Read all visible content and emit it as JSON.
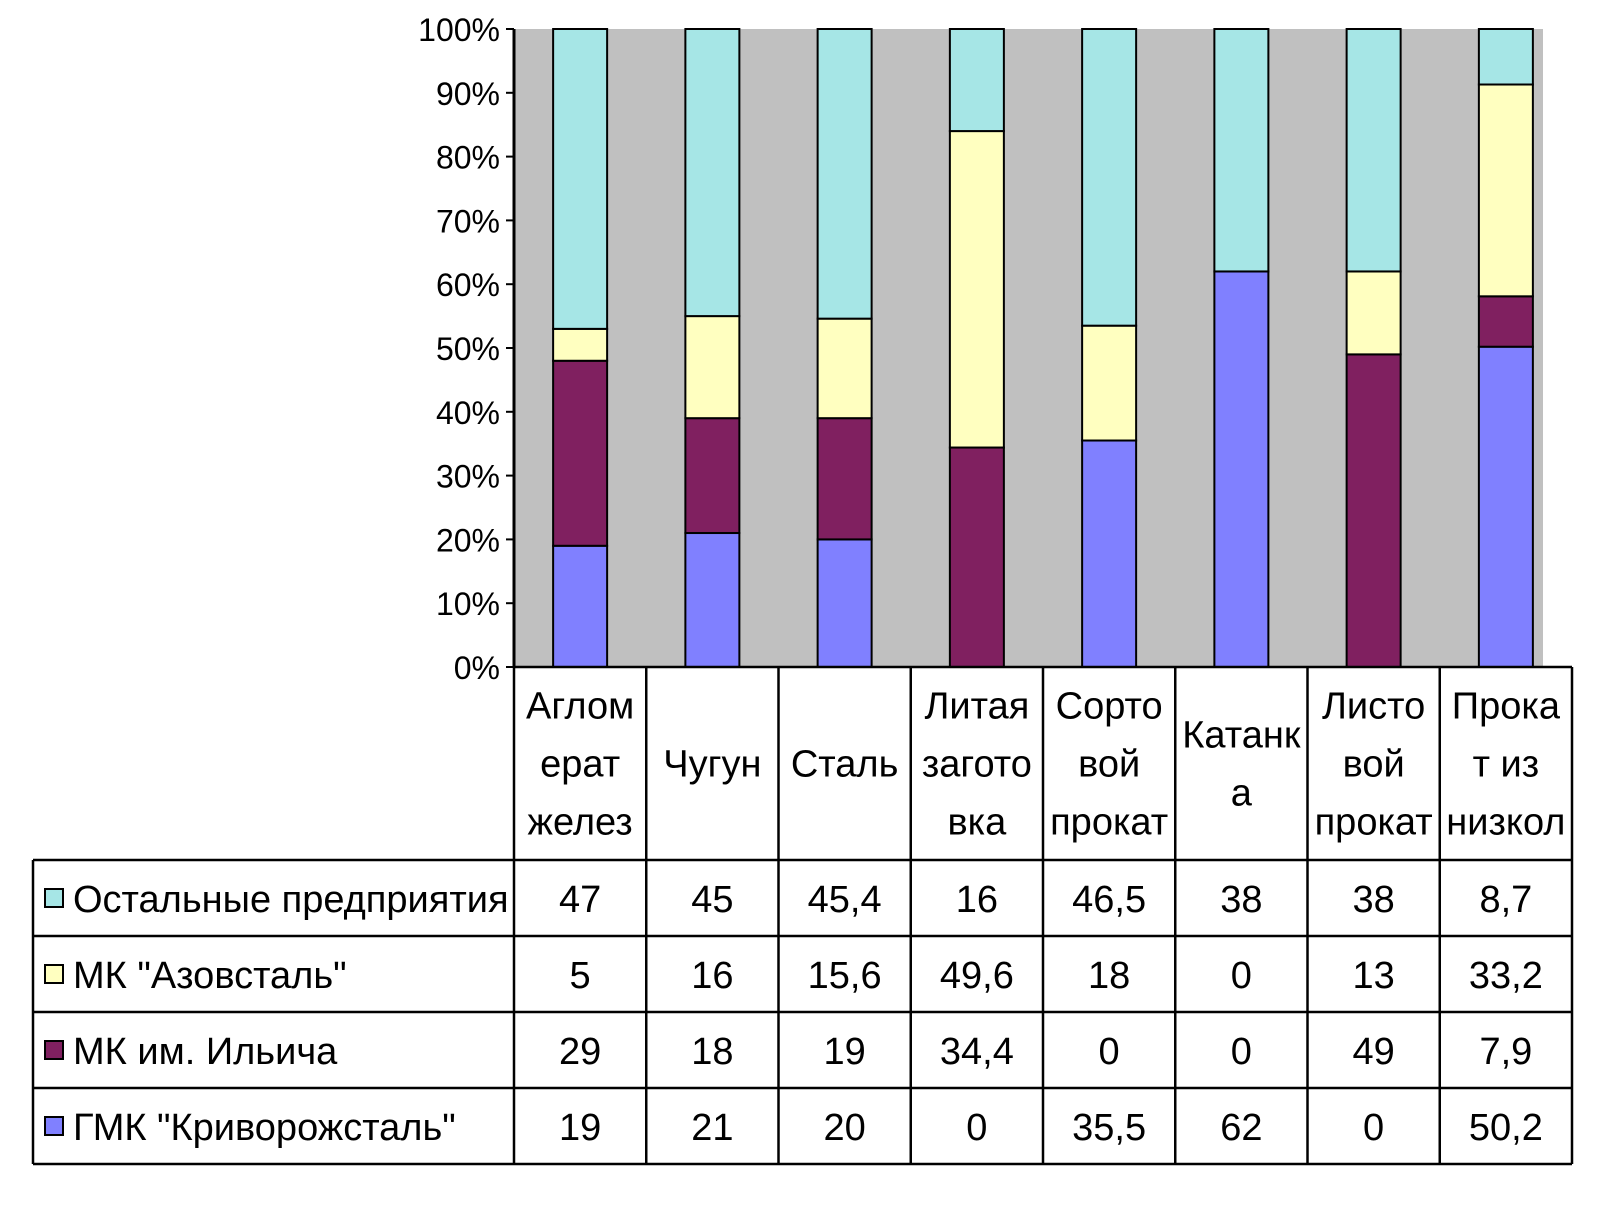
{
  "chart_data": {
    "type": "bar",
    "stacked": "percent",
    "categories": [
      [
        "Аглом",
        "ерат",
        "желез"
      ],
      [
        "Чугун"
      ],
      [
        "Сталь"
      ],
      [
        "Литая",
        "загото",
        "вка"
      ],
      [
        "Сорто",
        "вой",
        "прокат"
      ],
      [
        "Катанк",
        "а"
      ],
      [
        "Листо",
        "вой",
        "прокат"
      ],
      [
        "Прока",
        "т из",
        "низкол"
      ]
    ],
    "y_ticks": [
      "0%",
      "10%",
      "20%",
      "30%",
      "40%",
      "50%",
      "60%",
      "70%",
      "80%",
      "90%",
      "100%"
    ],
    "ylim": [
      0,
      100
    ],
    "series": [
      {
        "name": "ГМК \"Криворожсталь\"",
        "color": "#8080FF",
        "values": [
          19,
          21,
          20,
          0,
          35.5,
          62,
          0,
          50.2
        ],
        "labels": [
          "19",
          "21",
          "20",
          "0",
          "35,5",
          "62",
          "0",
          "50,2"
        ]
      },
      {
        "name": "МК им. Ильича",
        "color": "#802060",
        "values": [
          29,
          18,
          19,
          34.4,
          0,
          0,
          49,
          7.9
        ],
        "labels": [
          "29",
          "18",
          "19",
          "34,4",
          "0",
          "0",
          "49",
          "7,9"
        ]
      },
      {
        "name": "МК \"Азовсталь\"",
        "color": "#FFFFC0",
        "values": [
          5,
          16,
          15.6,
          49.6,
          18,
          0,
          13,
          33.2
        ],
        "labels": [
          "5",
          "16",
          "15,6",
          "49,6",
          "18",
          "0",
          "13",
          "33,2"
        ]
      },
      {
        "name": "Остальные предприятия",
        "color": "#A6E6E6",
        "values": [
          47,
          45,
          45.4,
          16,
          46.5,
          38,
          38,
          8.7
        ],
        "labels": [
          "47",
          "45",
          "45,4",
          "16",
          "46,5",
          "38",
          "38",
          "8,7"
        ]
      }
    ],
    "table_row_order": [
      3,
      2,
      1,
      0
    ],
    "plot_background": "#C0C0C0",
    "grid": false,
    "legend": "data-table"
  }
}
